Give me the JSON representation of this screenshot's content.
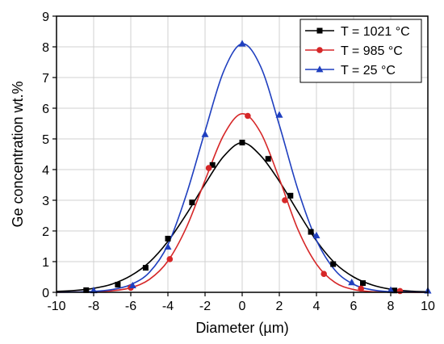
{
  "chart_data": {
    "type": "line",
    "xlabel": "Diameter (µm)",
    "ylabel": "Ge concentration wt.%",
    "xlim": [
      -10,
      10
    ],
    "ylim": [
      0,
      9
    ],
    "x_ticks": [
      "-10",
      "-8",
      "-6",
      "-4",
      "-2",
      "0",
      "2",
      "4",
      "6",
      "8",
      "10"
    ],
    "y_ticks": [
      "0",
      "1",
      "2",
      "3",
      "4",
      "5",
      "6",
      "7",
      "8",
      "9"
    ],
    "grid": true,
    "legend_position": "top-right",
    "series": [
      {
        "name": "T = 1021 °C",
        "color": "#000000",
        "marker": "square",
        "points": [
          [
            -8.4,
            0.07
          ],
          [
            -6.7,
            0.25
          ],
          [
            -5.2,
            0.8
          ],
          [
            -4.0,
            1.75
          ],
          [
            -2.7,
            2.93
          ],
          [
            -1.6,
            4.15
          ],
          [
            0,
            4.88
          ],
          [
            1.4,
            4.35
          ],
          [
            2.6,
            3.15
          ],
          [
            3.7,
            1.97
          ],
          [
            4.9,
            0.92
          ],
          [
            6.5,
            0.3
          ],
          [
            8.2,
            0.06
          ]
        ],
        "curve": [
          [
            -10,
            0.03
          ],
          [
            -9,
            0.06
          ],
          [
            -8,
            0.13
          ],
          [
            -7,
            0.27
          ],
          [
            -6,
            0.54
          ],
          [
            -5,
            0.98
          ],
          [
            -4,
            1.66
          ],
          [
            -3,
            2.55
          ],
          [
            -2,
            3.53
          ],
          [
            -1,
            4.43
          ],
          [
            0,
            4.88
          ],
          [
            1,
            4.45
          ],
          [
            2,
            3.62
          ],
          [
            3,
            2.63
          ],
          [
            4,
            1.68
          ],
          [
            5,
            0.95
          ],
          [
            6,
            0.5
          ],
          [
            7,
            0.24
          ],
          [
            8,
            0.1
          ],
          [
            9,
            0.04
          ],
          [
            10,
            0.02
          ]
        ]
      },
      {
        "name": "T = 985 °C",
        "color": "#d62728",
        "marker": "circle",
        "points": [
          [
            -6.0,
            0.15
          ],
          [
            -3.9,
            1.08
          ],
          [
            -1.8,
            4.05
          ],
          [
            0.3,
            5.75
          ],
          [
            2.3,
            3.0
          ],
          [
            4.4,
            0.6
          ],
          [
            6.4,
            0.12
          ],
          [
            8.5,
            0.04
          ]
        ],
        "curve": [
          [
            -10,
            0.0
          ],
          [
            -9,
            0.01
          ],
          [
            -8,
            0.02
          ],
          [
            -7,
            0.05
          ],
          [
            -6,
            0.15
          ],
          [
            -5,
            0.42
          ],
          [
            -4,
            1.02
          ],
          [
            -3,
            2.12
          ],
          [
            -2,
            3.65
          ],
          [
            -1,
            5.12
          ],
          [
            0,
            5.82
          ],
          [
            1,
            5.2
          ],
          [
            2,
            3.7
          ],
          [
            3,
            2.05
          ],
          [
            4,
            0.92
          ],
          [
            5,
            0.32
          ],
          [
            6,
            0.09
          ],
          [
            7,
            0.02
          ],
          [
            8,
            0.01
          ],
          [
            9,
            0.0
          ],
          [
            10,
            0.0
          ]
        ]
      },
      {
        "name": "T = 25 °C",
        "color": "#1f3fbf",
        "marker": "triangle",
        "points": [
          [
            -8.0,
            0.06
          ],
          [
            -5.9,
            0.22
          ],
          [
            -4.0,
            1.48
          ],
          [
            -2.0,
            5.15
          ],
          [
            0,
            8.1
          ],
          [
            2.0,
            5.78
          ],
          [
            4.0,
            1.85
          ],
          [
            5.9,
            0.32
          ],
          [
            8.0,
            0.07
          ],
          [
            10.0,
            0.05
          ]
        ],
        "curve": [
          [
            -10,
            0.0
          ],
          [
            -9,
            0.01
          ],
          [
            -8,
            0.03
          ],
          [
            -7,
            0.09
          ],
          [
            -6,
            0.25
          ],
          [
            -5,
            0.65
          ],
          [
            -4,
            1.55
          ],
          [
            -3,
            3.2
          ],
          [
            -2,
            5.25
          ],
          [
            -1,
            7.2
          ],
          [
            0,
            8.1
          ],
          [
            1,
            7.35
          ],
          [
            2,
            5.45
          ],
          [
            3,
            3.35
          ],
          [
            4,
            1.7
          ],
          [
            5,
            0.72
          ],
          [
            6,
            0.26
          ],
          [
            7,
            0.08
          ],
          [
            8,
            0.02
          ],
          [
            9,
            0.01
          ],
          [
            10,
            0.0
          ]
        ]
      }
    ]
  }
}
